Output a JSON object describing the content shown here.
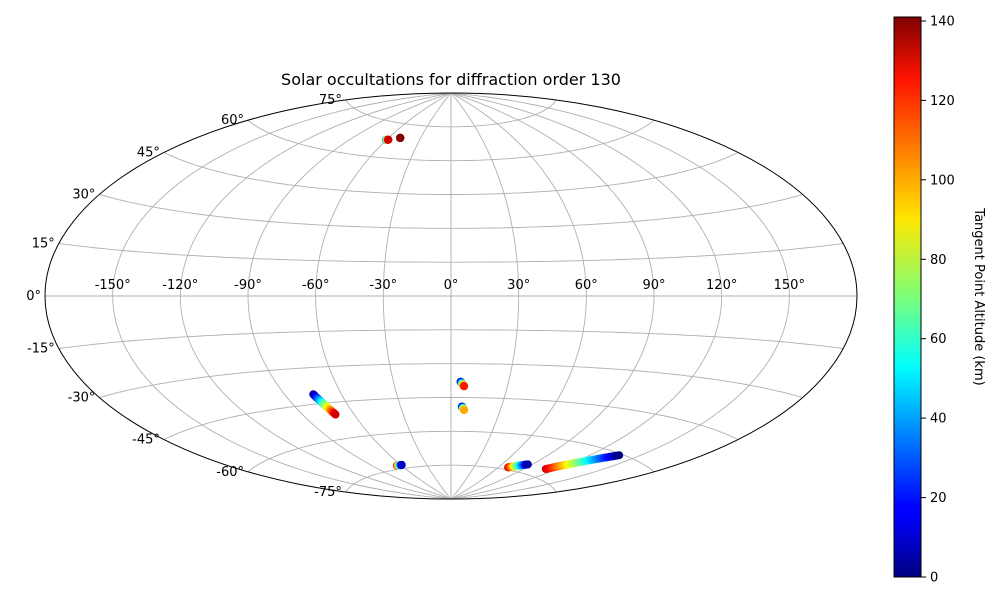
{
  "chart_data": {
    "type": "scatter",
    "projection": "aitoff",
    "title": "Solar occultations for diffraction order 130",
    "grid": true,
    "lon_ticks": [
      -150,
      -120,
      -90,
      -60,
      -30,
      0,
      30,
      60,
      90,
      120,
      150
    ],
    "lat_ticks": [
      -75,
      -60,
      -45,
      -30,
      -15,
      0,
      15,
      30,
      45,
      60,
      75
    ],
    "lon_tick_labels": [
      "-150°",
      "-120°",
      "-90°",
      "-60°",
      "-30°",
      "0°",
      "30°",
      "60°",
      "90°",
      "120°",
      "150°"
    ],
    "lat_tick_labels": [
      "-75°",
      "-60°",
      "-45°",
      "-30°",
      "-15°",
      "0°",
      "15°",
      "30°",
      "45°",
      "60°",
      "75°"
    ],
    "colorbar": {
      "label": "Tangent Point Altitude (km)",
      "min": 0,
      "max": 141,
      "ticks": [
        0,
        20,
        40,
        60,
        80,
        100,
        120,
        140
      ],
      "colormap": "jet",
      "placement": "right"
    },
    "series": [
      {
        "lon_start": -60.5,
        "lat_start": 67.5,
        "alt_start": 30,
        "lon_end": -58.5,
        "lat_end": 67.7,
        "alt_end": 130
      },
      {
        "lon_start": -49.5,
        "lat_start": 69.0,
        "alt_start": 130,
        "lon_end": -49.5,
        "lat_end": 69.0,
        "alt_end": 140
      },
      {
        "lon_start": -75.0,
        "lat_start": -41.0,
        "alt_start": 0,
        "lon_end": -71.0,
        "lat_end": -50.0,
        "alt_end": 130
      },
      {
        "lon_start": -65.0,
        "lat_start": -73.5,
        "alt_start": 130,
        "lon_end": -59.0,
        "lat_end": -73.5,
        "alt_end": 10
      },
      {
        "lon_start": 5.0,
        "lat_start": -38.0,
        "alt_start": 0,
        "lon_end": 7.0,
        "lat_end": -40.0,
        "alt_end": 120
      },
      {
        "lon_start": 6.5,
        "lat_start": -49.0,
        "alt_start": 0,
        "lon_end": 8.0,
        "lat_end": -50.5,
        "alt_end": 100
      },
      {
        "lon_start": 71.0,
        "lat_start": -74.0,
        "alt_start": 130,
        "lon_end": 86.0,
        "lat_end": -71.5,
        "alt_end": 5
      },
      {
        "lon_start": 110.0,
        "lat_start": -71.5,
        "alt_start": 130,
        "lon_end": 138.0,
        "lat_end": -60.5,
        "alt_end": 0
      }
    ]
  }
}
